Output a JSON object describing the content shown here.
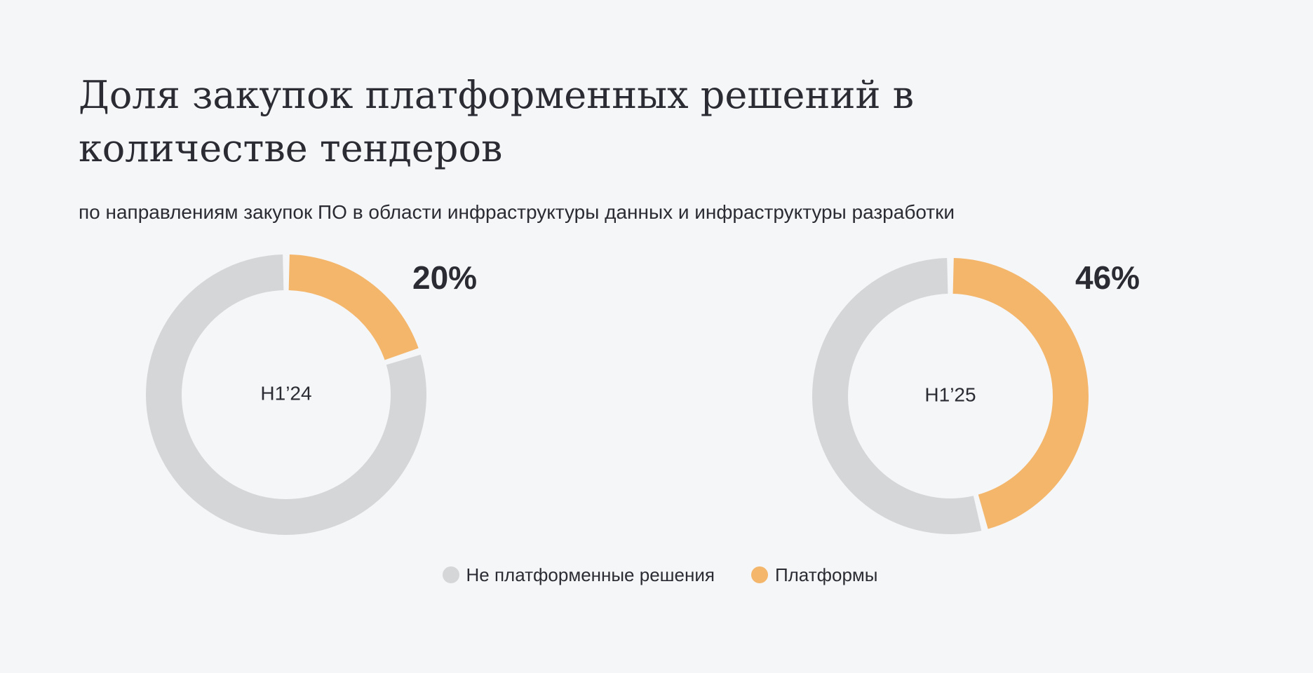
{
  "title": "Доля закупок платформенных решений в количестве тендеров",
  "subtitle": "по направлениям закупок ПО в области инфраструктуры данных и инфраструктуры разработки",
  "colors": {
    "background": "#f5f6f8",
    "non_platform": "#d5d6d8",
    "platform": "#f4b66b",
    "text": "#2b2c33"
  },
  "chart_data": [
    {
      "type": "pie",
      "style": "donut",
      "center_label": "H1’24",
      "categories": [
        "Не платформенные решения",
        "Платформы"
      ],
      "values": [
        80,
        20
      ],
      "value_label": "20%"
    },
    {
      "type": "pie",
      "style": "donut",
      "center_label": "H1’25",
      "categories": [
        "Не платформенные решения",
        "Платформы"
      ],
      "values": [
        54,
        46
      ],
      "value_label": "46%"
    }
  ],
  "legend": {
    "items": [
      {
        "label": "Не платформенные решения",
        "color": "#d5d6d8"
      },
      {
        "label": "Платформы",
        "color": "#f4b66b"
      }
    ]
  }
}
